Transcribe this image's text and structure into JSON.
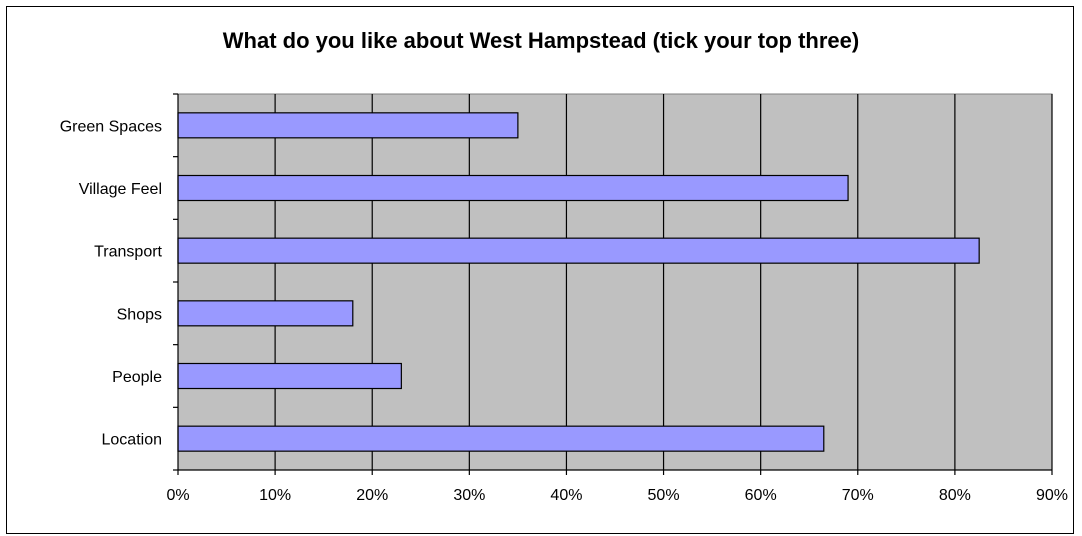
{
  "chart_data": {
    "type": "bar",
    "orientation": "horizontal",
    "title": "What do you like about West Hampstead (tick your top three)",
    "xlabel": "",
    "ylabel": "",
    "categories": [
      "Green Spaces",
      "Village Feel",
      "Transport",
      "Shops",
      "People",
      "Location"
    ],
    "values": [
      35,
      69,
      82.5,
      18,
      23,
      66.5
    ],
    "xlim": [
      0,
      90
    ],
    "xticks": [
      "0%",
      "10%",
      "20%",
      "30%",
      "40%",
      "50%",
      "60%",
      "70%",
      "80%",
      "90%"
    ],
    "grid": "vertical",
    "legend": "none"
  },
  "colors": {
    "bar_fill": "#9999ff",
    "plot_background": "#c0c0c0",
    "gridline": "#000000"
  }
}
